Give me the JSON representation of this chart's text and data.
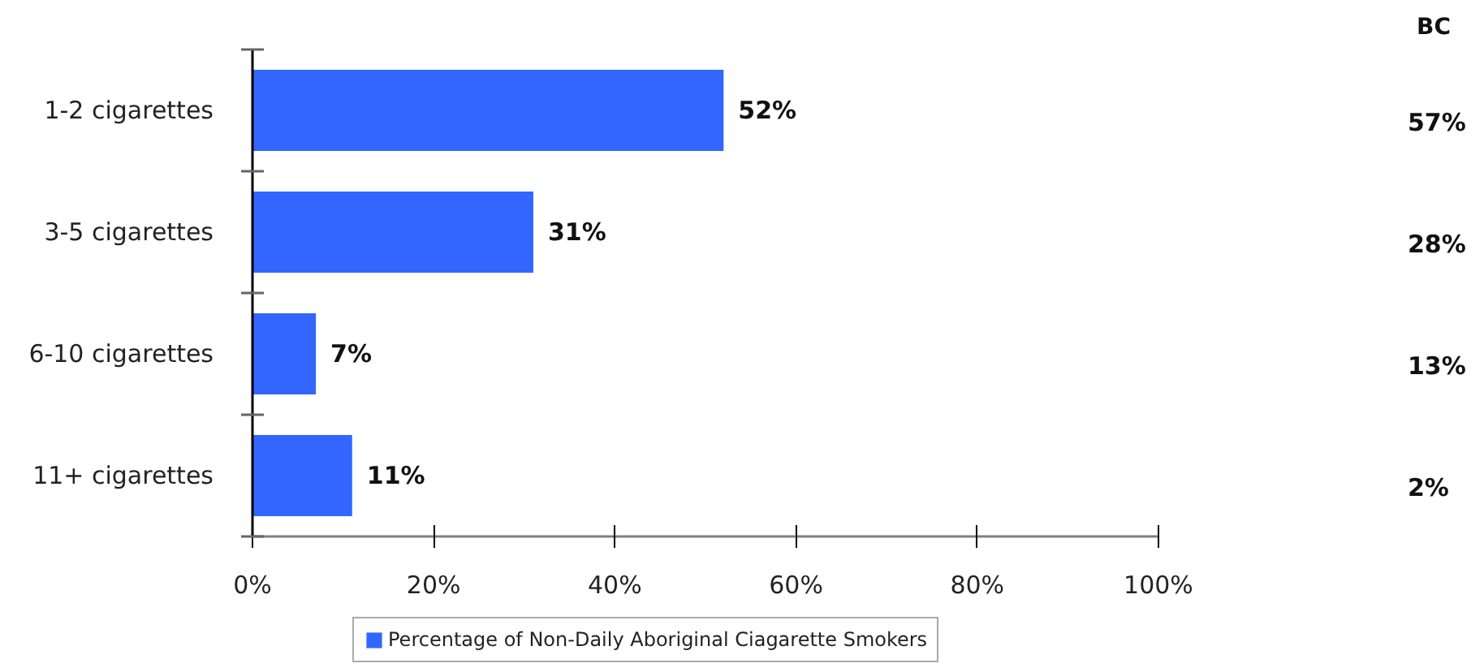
{
  "chart_data": {
    "type": "bar",
    "orientation": "horizontal",
    "categories": [
      "1-2 cigarettes",
      "3-5 cigarettes",
      "6-10 cigarettes",
      "11+ cigarettes"
    ],
    "series": [
      {
        "name": "Percentage of Non-Daily Aboriginal Ciagarette Smokers",
        "color": "#3366ff",
        "values": [
          52,
          31,
          7,
          11
        ],
        "value_labels": [
          "52%",
          "31%",
          "7%",
          "11%"
        ]
      }
    ],
    "xlim": [
      0,
      100
    ],
    "xticks": [
      {
        "value": 0,
        "label": "0%"
      },
      {
        "value": 20,
        "label": "20%"
      },
      {
        "value": 40,
        "label": "40%"
      },
      {
        "value": 60,
        "label": "60%"
      },
      {
        "value": 80,
        "label": "80%"
      },
      {
        "value": 100,
        "label": "100%"
      }
    ],
    "legend": "bottom",
    "annotations": [
      "BC",
      "57%",
      "28%",
      "13%",
      "2%"
    ]
  }
}
